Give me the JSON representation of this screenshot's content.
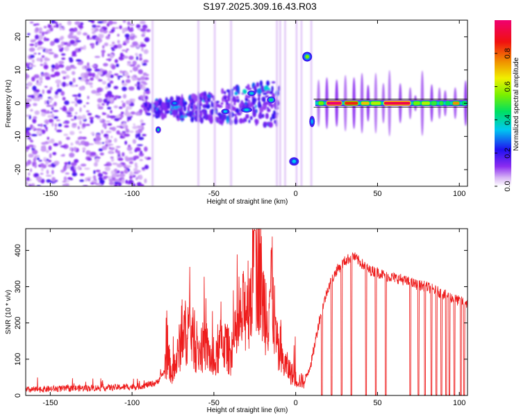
{
  "title": "S197.2025.309.16.43.R03",
  "colors": {
    "snr_line": "#ee1c1c",
    "spectrogram_base": "#7a1cf0",
    "track": "#000000"
  },
  "chart_data": [
    {
      "type": "heatmap",
      "xlabel": "Height of straight line (km)",
      "ylabel": "Frequency (Hz)",
      "xlim": [
        -165,
        105
      ],
      "ylim": [
        -25,
        25
      ],
      "xticks": [
        -150,
        -100,
        -50,
        0,
        50,
        100
      ],
      "yticks": [
        -20,
        -10,
        0,
        10,
        20
      ],
      "colorbar": {
        "label": "Normalized spectral amplitude",
        "range": [
          0,
          1
        ],
        "ticks": [
          "0.0",
          "0.2",
          "0.4",
          "0.6",
          "0.8"
        ],
        "colormap": "rainbow (white-violet-blue-cyan-green-yellow-orange-red-magenta)"
      },
      "features": [
        {
          "name": "noise region",
          "x_range": [
            -165,
            -90
          ],
          "freq_range": [
            -25,
            25
          ],
          "amplitude": 0.1
        },
        {
          "name": "scattered band",
          "x_range": [
            -90,
            -10
          ],
          "freq_center": 0,
          "amplitude": 0.2
        },
        {
          "name": "tone at +14 Hz",
          "x_range": [
            5,
            9
          ],
          "freq": 14,
          "amplitude": 0.55
        },
        {
          "name": "tone at -17 Hz",
          "x_range": [
            -2,
            3
          ],
          "freq": -17,
          "amplitude": 0.3
        },
        {
          "name": "strong line at 0 Hz",
          "x_range": [
            12,
            105
          ],
          "freq": 0,
          "amplitude": 1.0
        }
      ]
    },
    {
      "type": "line",
      "xlabel": "Height of straight line (km)",
      "ylabel": "SNR (10 * v/v)",
      "xlim": [
        -165,
        105
      ],
      "ylim": [
        0,
        460
      ],
      "xticks": [
        -150,
        -100,
        -50,
        0,
        50,
        100
      ],
      "yticks": [
        0,
        100,
        200,
        300,
        400
      ],
      "series": [
        {
          "x": [
            -165,
            -150,
            -130,
            -110,
            -95,
            -85,
            -78,
            -75,
            -70,
            -65,
            -60,
            -55,
            -50,
            -45,
            -40,
            -35,
            -30,
            -27,
            -25,
            -23,
            -20,
            -17,
            -15,
            -12,
            -10,
            -5,
            0,
            5,
            10,
            12,
            15,
            20,
            25,
            30,
            35,
            40,
            45,
            50,
            55,
            60,
            65,
            70,
            75,
            80,
            85,
            90,
            95,
            100,
            105
          ],
          "y": [
            15,
            18,
            20,
            22,
            25,
            35,
            80,
            40,
            120,
            150,
            90,
            110,
            60,
            120,
            90,
            140,
            200,
            230,
            260,
            300,
            200,
            180,
            250,
            120,
            80,
            60,
            35,
            30,
            100,
            150,
            220,
            300,
            345,
            370,
            385,
            365,
            345,
            340,
            330,
            325,
            320,
            310,
            305,
            300,
            290,
            280,
            270,
            260,
            255
          ]
        }
      ],
      "dropouts": [
        16,
        22,
        28,
        34,
        43,
        49,
        55,
        70,
        75,
        79,
        83,
        86,
        89,
        92,
        94,
        97,
        101,
        103
      ]
    }
  ]
}
